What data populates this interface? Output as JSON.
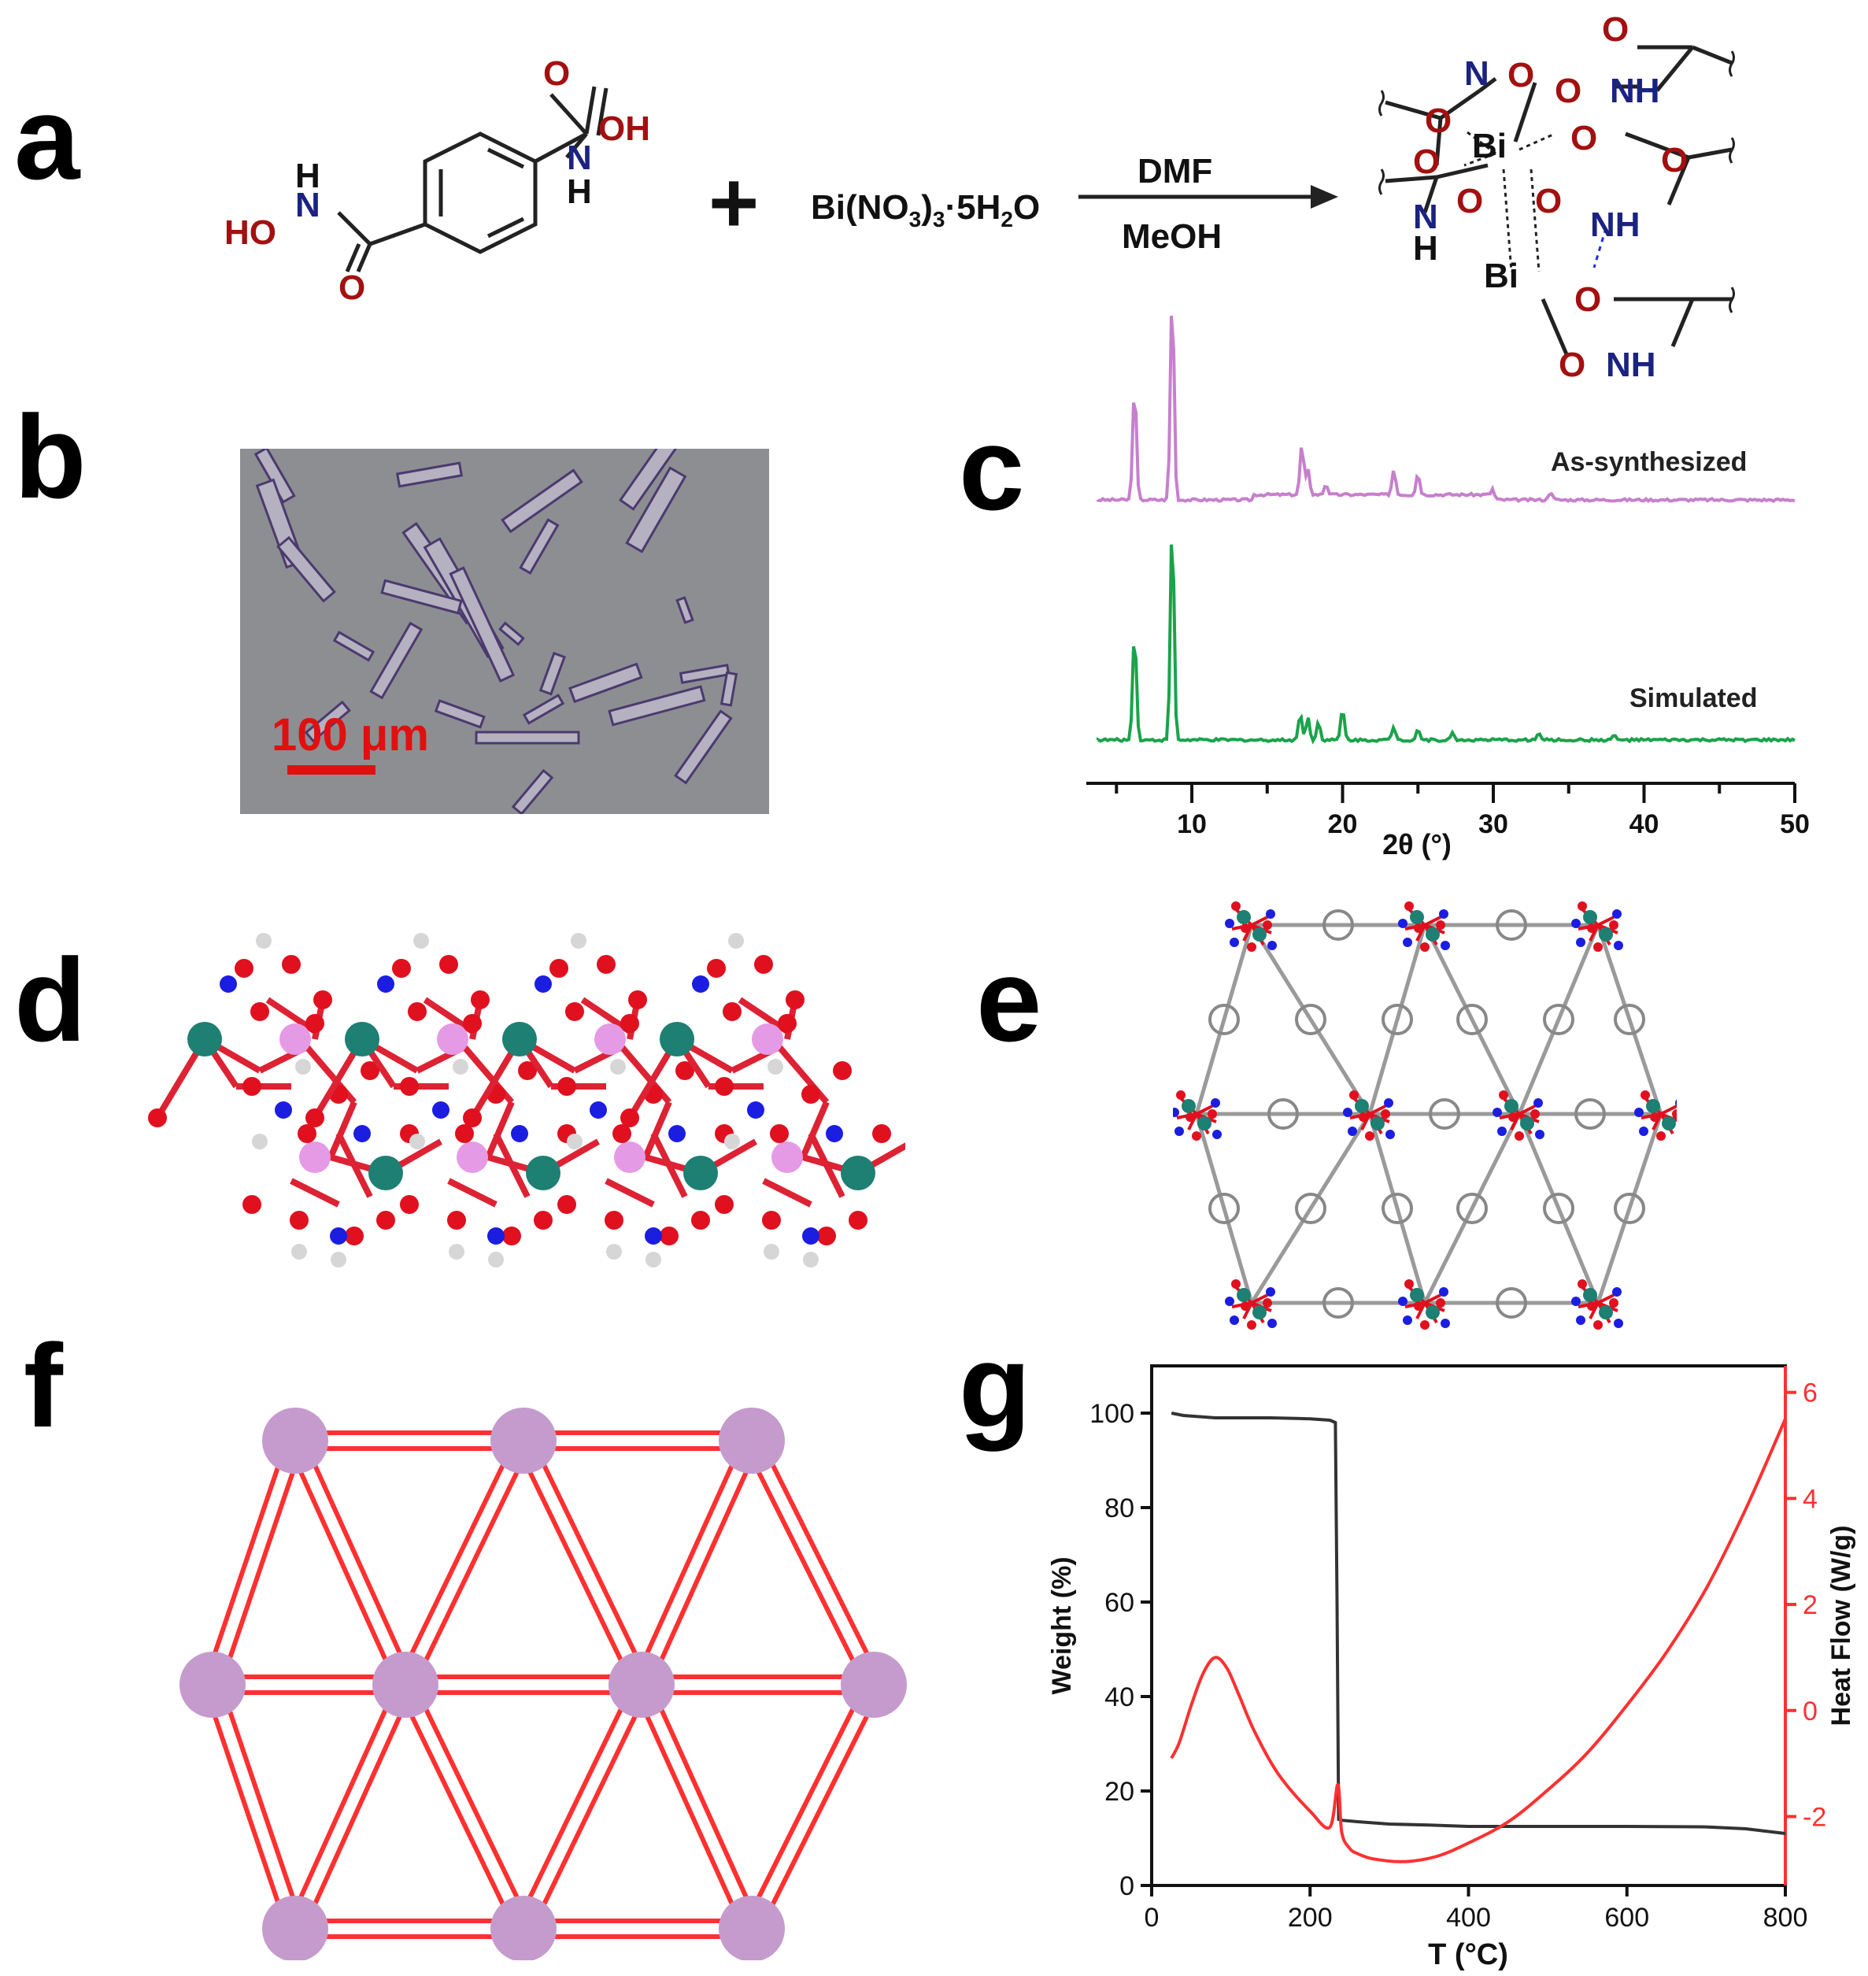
{
  "panels": {
    "a": "a",
    "b": "b",
    "c": "c",
    "d": "d",
    "e": "e",
    "f": "f",
    "g": "g"
  },
  "scheme": {
    "reactant_labels": {
      "H": "H",
      "N": "N",
      "O": "O",
      "OH": "OH",
      "HO": "HO"
    },
    "plus": "+",
    "salt": "Bi(NO",
    "salt_sub1": "3",
    "salt_mid": ")",
    "salt_sub2": "3",
    "salt_end": "·5H",
    "salt_sub3": "2",
    "salt_tail": "O",
    "solvent_top": "DMF",
    "solvent_bottom": "MeOH",
    "product_labels": {
      "bi": "Bi",
      "o": "O",
      "n": "N",
      "nh": "NH",
      "h": "H"
    }
  },
  "micrograph": {
    "scale_label": "100 μm"
  },
  "colors": {
    "as_synth": "#c77fcd",
    "simulated": "#1aa34a",
    "tga": "#333333",
    "dsc": "#ff3030",
    "node": "#c59bcd",
    "link": "#ff3030",
    "bi_atom": "#1e7f73",
    "o_atom": "#e0101f",
    "n_atom": "#1b1ee0",
    "h_atom": "#d6d6d6",
    "bi2_atom": "#e59ae6"
  },
  "chart_data": [
    {
      "type": "line",
      "panel": "c",
      "xlabel": "2θ (°)",
      "ylabel": "",
      "xlim": [
        3,
        50
      ],
      "xticks": [
        10,
        20,
        30,
        40,
        50
      ],
      "series": [
        {
          "name": "As-synthesized",
          "peaks": [
            [
              6.2,
              0.55
            ],
            [
              8.7,
              1.0
            ],
            [
              17.3,
              0.24
            ],
            [
              17.7,
              0.12
            ],
            [
              18.9,
              0.05
            ],
            [
              23.4,
              0.12
            ],
            [
              25.0,
              0.1
            ],
            [
              30.0,
              0.03
            ],
            [
              33.8,
              0.04
            ]
          ]
        },
        {
          "name": "Simulated",
          "peaks": [
            [
              6.2,
              0.5
            ],
            [
              8.7,
              1.0
            ],
            [
              17.2,
              0.12
            ],
            [
              17.7,
              0.1
            ],
            [
              18.4,
              0.08
            ],
            [
              20.0,
              0.14
            ],
            [
              23.4,
              0.06
            ],
            [
              25.0,
              0.05
            ],
            [
              27.3,
              0.03
            ],
            [
              33.0,
              0.03
            ],
            [
              38.0,
              0.02
            ]
          ]
        }
      ]
    },
    {
      "type": "line",
      "panel": "g",
      "xlabel": "T (°C)",
      "ylabel": "Weight (%)",
      "y2label": "Heat Flow (W/g)",
      "xlim": [
        0,
        800
      ],
      "ylim": [
        0,
        110
      ],
      "y2lim": [
        -3.3,
        6.5
      ],
      "xticks": [
        0,
        200,
        400,
        600,
        800
      ],
      "yticks": [
        0,
        20,
        40,
        60,
        80,
        100
      ],
      "y2ticks": [
        -2,
        0,
        2,
        4,
        6
      ],
      "series": [
        {
          "name": "Weight",
          "axis": "left",
          "x": [
            25,
            40,
            80,
            150,
            200,
            225,
            232,
            234,
            236,
            240,
            260,
            300,
            350,
            400,
            500,
            600,
            700,
            750,
            800
          ],
          "y": [
            100,
            99.5,
            99,
            99,
            98.8,
            98.5,
            98,
            60,
            14,
            13.8,
            13.5,
            13,
            12.8,
            12.5,
            12.5,
            12.5,
            12.4,
            12,
            11
          ]
        },
        {
          "name": "Heat Flow",
          "axis": "right",
          "x": [
            25,
            35,
            50,
            65,
            80,
            95,
            110,
            130,
            160,
            200,
            225,
            235,
            240,
            250,
            260,
            280,
            320,
            360,
            400,
            450,
            500,
            550,
            600,
            650,
            700,
            750,
            800
          ],
          "y": [
            -0.9,
            -0.6,
            0.1,
            0.7,
            1.0,
            0.8,
            0.3,
            -0.4,
            -1.2,
            -1.9,
            -2.2,
            -1.4,
            -2.3,
            -2.6,
            -2.7,
            -2.8,
            -2.85,
            -2.75,
            -2.5,
            -2.1,
            -1.5,
            -0.8,
            0.1,
            1.1,
            2.3,
            3.8,
            5.5
          ]
        }
      ]
    }
  ]
}
